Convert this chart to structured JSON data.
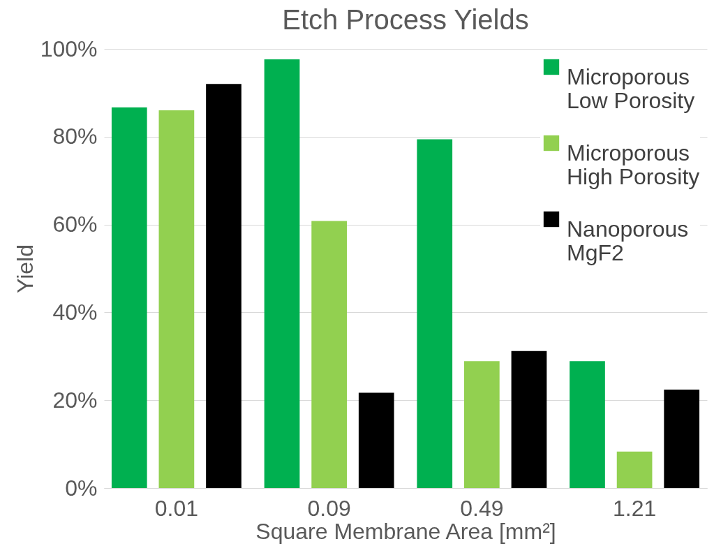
{
  "chart_data": {
    "type": "bar",
    "title": "Etch Process Yields",
    "xlabel": "Square Membrane Area [mm²]",
    "ylabel": "Yield",
    "categories": [
      "0.01",
      "0.09",
      "0.49",
      "1.21"
    ],
    "series": [
      {
        "name": "Microporous Low Porosity",
        "color": "#00b050",
        "values": [
          86.7,
          97.6,
          79.4,
          28.9
        ]
      },
      {
        "name": "Microporous High Porosity",
        "color": "#92d050",
        "values": [
          86.0,
          60.8,
          28.9,
          8.3
        ]
      },
      {
        "name": "Nanoporous MgF2",
        "color": "#000000",
        "values": [
          92.0,
          21.7,
          31.2,
          22.4
        ]
      }
    ],
    "ylim": [
      0,
      100
    ],
    "yticks": [
      {
        "value": 0,
        "label": "0%"
      },
      {
        "value": 20,
        "label": "20%"
      },
      {
        "value": 40,
        "label": "40%"
      },
      {
        "value": 60,
        "label": "60%"
      },
      {
        "value": 80,
        "label": "80%"
      },
      {
        "value": 100,
        "label": "100%"
      }
    ],
    "grid": "y",
    "legend": "top right"
  }
}
